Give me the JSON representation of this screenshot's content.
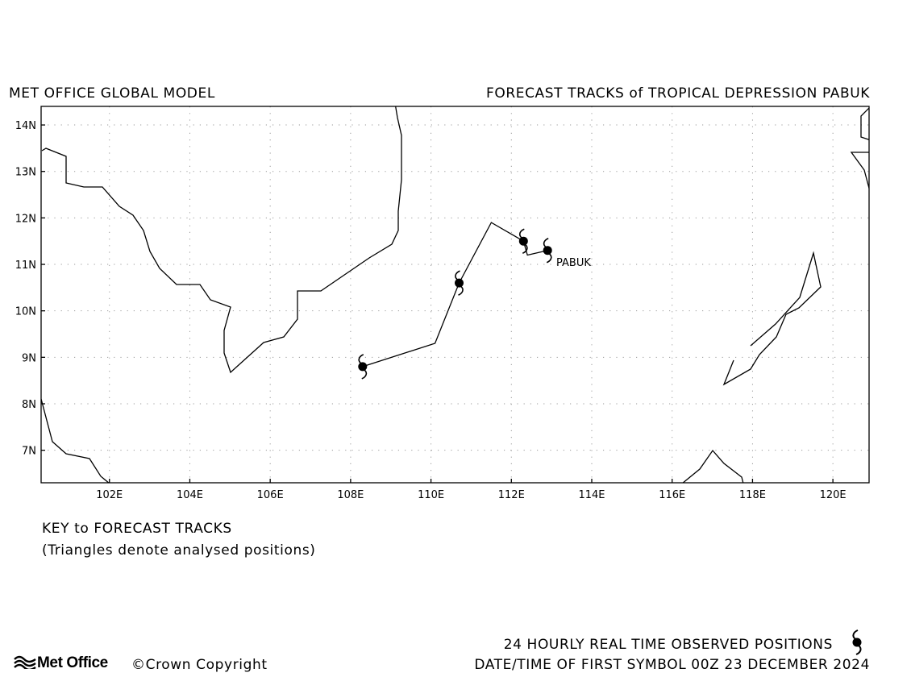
{
  "header": {
    "left_title": "MET OFFICE GLOBAL MODEL",
    "right_title": "FORECAST TRACKS of TROPICAL DEPRESSION PABUK"
  },
  "map": {
    "lon_range": [
      100.3,
      120.9
    ],
    "lat_range": [
      6.3,
      14.4
    ],
    "lat_labels": [
      "14N",
      "13N",
      "12N",
      "11N",
      "10N",
      "9N",
      "8N",
      "7N"
    ],
    "lon_labels": [
      "102E",
      "104E",
      "106E",
      "108E",
      "110E",
      "112E",
      "114E",
      "116E",
      "118E",
      "120E"
    ],
    "grid": "dotted",
    "coastline_color": "#000000"
  },
  "chart_data": {
    "type": "scatter",
    "title": "FORECAST TRACKS of TROPICAL DEPRESSION PABUK",
    "xlabel": "",
    "ylabel": "",
    "xlim": [
      100.3,
      120.9
    ],
    "ylim": [
      6.3,
      14.4
    ],
    "storm_name": "PABUK",
    "track": [
      {
        "lon": 112.9,
        "lat": 11.3
      },
      {
        "lon": 112.4,
        "lat": 11.2
      },
      {
        "lon": 112.3,
        "lat": 11.5
      },
      {
        "lon": 111.5,
        "lat": 11.9
      },
      {
        "lon": 110.7,
        "lat": 10.6
      },
      {
        "lon": 110.1,
        "lat": 9.3
      },
      {
        "lon": 108.3,
        "lat": 8.8
      }
    ],
    "symbols": [
      {
        "lon": 112.9,
        "lat": 11.3
      },
      {
        "lon": 112.3,
        "lat": 11.5
      },
      {
        "lon": 110.7,
        "lat": 10.6
      },
      {
        "lon": 108.3,
        "lat": 8.8
      }
    ]
  },
  "key": {
    "title": "KEY to FORECAST TRACKS",
    "subtitle": "(Triangles denote analysed positions)"
  },
  "footer": {
    "logo_text": "Met Office",
    "copyright": "©Crown Copyright",
    "observed_label": "24 HOURLY REAL TIME OBSERVED POSITIONS",
    "date_line": "DATE/TIME OF FIRST SYMBOL 00Z 23 DECEMBER 2024"
  }
}
